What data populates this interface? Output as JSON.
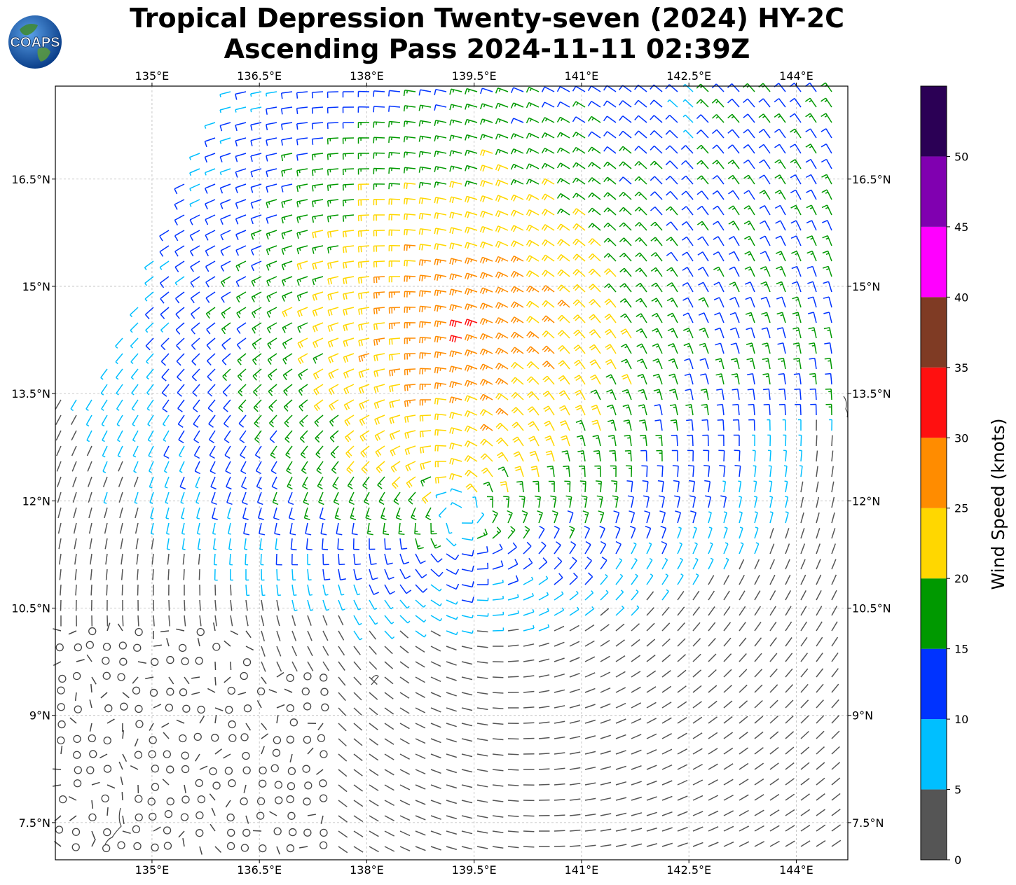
{
  "title": {
    "line1": "Tropical Depression Twenty-seven (2024) HY-2C",
    "line2": "Ascending Pass 2024-11-11 02:39Z"
  },
  "logo": {
    "text": "COAPS",
    "icon": "globe-icon"
  },
  "axes": {
    "lon_ticks": [
      "135°E",
      "136.5°E",
      "138°E",
      "139.5°E",
      "141°E",
      "142.5°E",
      "144°E"
    ],
    "lon_values": [
      135,
      136.5,
      138,
      139.5,
      141,
      142.5,
      144
    ],
    "lat_ticks": [
      "16.5°N",
      "15°N",
      "13.5°N",
      "12°N",
      "10.5°N",
      "9°N",
      "7.5°N"
    ],
    "lat_values": [
      16.5,
      15,
      13.5,
      12,
      10.5,
      9,
      7.5
    ],
    "lon_range": [
      133.65,
      144.72
    ],
    "lat_range": [
      6.98,
      17.8
    ],
    "gridlines": true
  },
  "colorbar": {
    "label": "Wind Speed (knots)",
    "tick_labels": [
      "0",
      "5",
      "10",
      "15",
      "20",
      "25",
      "30",
      "35",
      "40",
      "45",
      "50"
    ],
    "bounds": [
      0,
      5,
      10,
      15,
      20,
      25,
      30,
      35,
      40,
      45,
      50,
      55
    ],
    "colors": [
      "#555555",
      "#00bfff",
      "#0033ff",
      "#009900",
      "#ffd700",
      "#ff8c00",
      "#ff1010",
      "#7f3b24",
      "#ff00ff",
      "#8000b0",
      "#2b0055"
    ]
  },
  "chart_data": {
    "type": "wind-barbs",
    "storm_center": {
      "lon": 139.3,
      "lat": 11.8
    },
    "max_wind_region": {
      "lon": 139.4,
      "lat": 14.4
    },
    "calm_rings_region": {
      "lon_range": [
        133.7,
        137.5
      ],
      "lat_range": [
        7.0,
        10.6
      ]
    },
    "legend_placement": "right"
  }
}
